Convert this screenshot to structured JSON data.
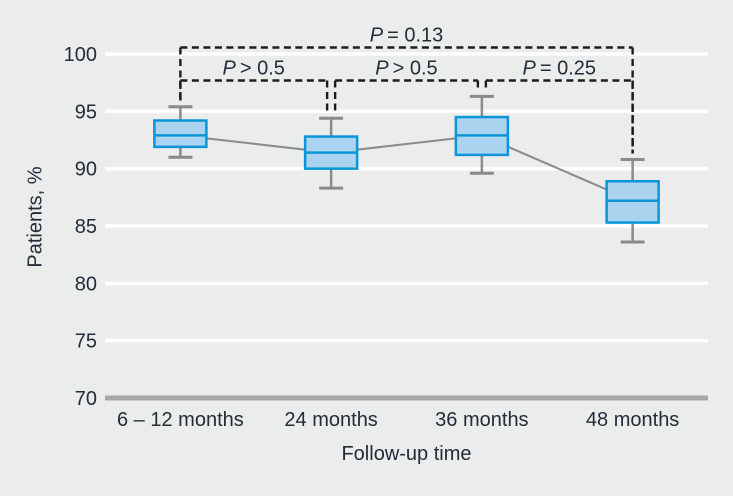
{
  "chart_data": {
    "type": "boxplot",
    "title": "",
    "xlabel": "Follow-up time",
    "ylabel": "Patients, %",
    "categories": [
      "6 – 12 months",
      "24 months",
      "36 months",
      "48 months"
    ],
    "y_ticks": [
      100,
      95,
      90,
      85,
      80,
      75,
      70
    ],
    "ylim": [
      70,
      102.5
    ],
    "grid": "horizontal-white-on-gray",
    "boxes": [
      {
        "category": "6 – 12 months",
        "whisker_low": 91.0,
        "q1": 91.9,
        "median": 92.9,
        "q3": 94.2,
        "whisker_high": 95.4
      },
      {
        "category": "24 months",
        "whisker_low": 88.3,
        "q1": 90.0,
        "median": 91.4,
        "q3": 92.8,
        "whisker_high": 94.4
      },
      {
        "category": "36 months",
        "whisker_low": 89.6,
        "q1": 91.2,
        "median": 92.9,
        "q3": 94.5,
        "whisker_high": 96.3
      },
      {
        "category": "48 months",
        "whisker_low": 83.6,
        "q1": 85.3,
        "median": 87.2,
        "q3": 88.9,
        "whisker_high": 90.8
      }
    ],
    "median_connector": true,
    "annotations": [
      {
        "label": "P = 0.13",
        "from": 0,
        "to": 3,
        "level": "top"
      },
      {
        "label": "P > 0.5",
        "from": 0,
        "to": 1,
        "level": "low"
      },
      {
        "label": "P > 0.5",
        "from": 1,
        "to": 2,
        "level": "low"
      },
      {
        "label": "P = 0.25",
        "from": 2,
        "to": 3,
        "level": "low"
      }
    ],
    "colors": {
      "background": "#ebecec",
      "gridline": "#ffffff",
      "axis_line": "#a8a8a8",
      "box_fill": "#aad3ef",
      "box_border": "#0a96d6",
      "whisker": "#8a8a8a",
      "bracket": "#1c1c1c",
      "text": "#242c38"
    }
  }
}
